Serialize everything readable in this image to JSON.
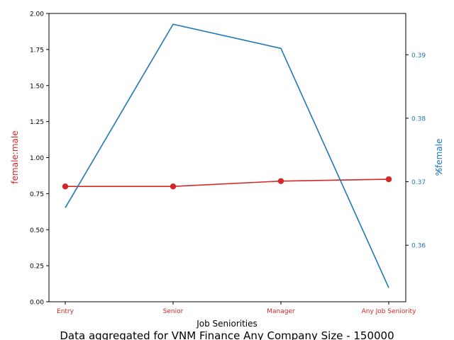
{
  "chart_data": {
    "type": "line",
    "categories": [
      "Entry",
      "Senior",
      "Manager",
      "Any Job Seniority"
    ],
    "xlabel": "Job Seniorities",
    "caption": "Data aggregated for VNM Finance Any Company Size - 150000",
    "left_axis": {
      "label": "female:male",
      "ylim": [
        0,
        2.0
      ],
      "ticks": [
        0,
        0.25,
        0.5,
        0.75,
        1.0,
        1.25,
        1.5,
        1.75,
        2.0
      ],
      "tick_labels": [
        "0.00",
        "0.25",
        "0.50",
        "0.75",
        "1.00",
        "1.25",
        "1.50",
        "1.75",
        "2.00"
      ],
      "color": "#d62728"
    },
    "right_axis": {
      "label": "%̸female",
      "ylim": [
        0.3511,
        0.3965
      ],
      "ticks": [
        0.36,
        0.37,
        0.38,
        0.39
      ],
      "tick_labels": [
        "0.36",
        "0.37",
        "0.38",
        "0.39"
      ],
      "color": "#1f77b4"
    },
    "series": [
      {
        "axis": "left",
        "color": "#d62728",
        "marker": "circle",
        "values": [
          0.8,
          0.8,
          0.837,
          0.85
        ]
      },
      {
        "axis": "right",
        "color": "#1f77b4",
        "marker": "none",
        "values": [
          0.3659,
          0.3948,
          0.391,
          0.3533
        ]
      }
    ],
    "grid": false,
    "legend": "none"
  }
}
